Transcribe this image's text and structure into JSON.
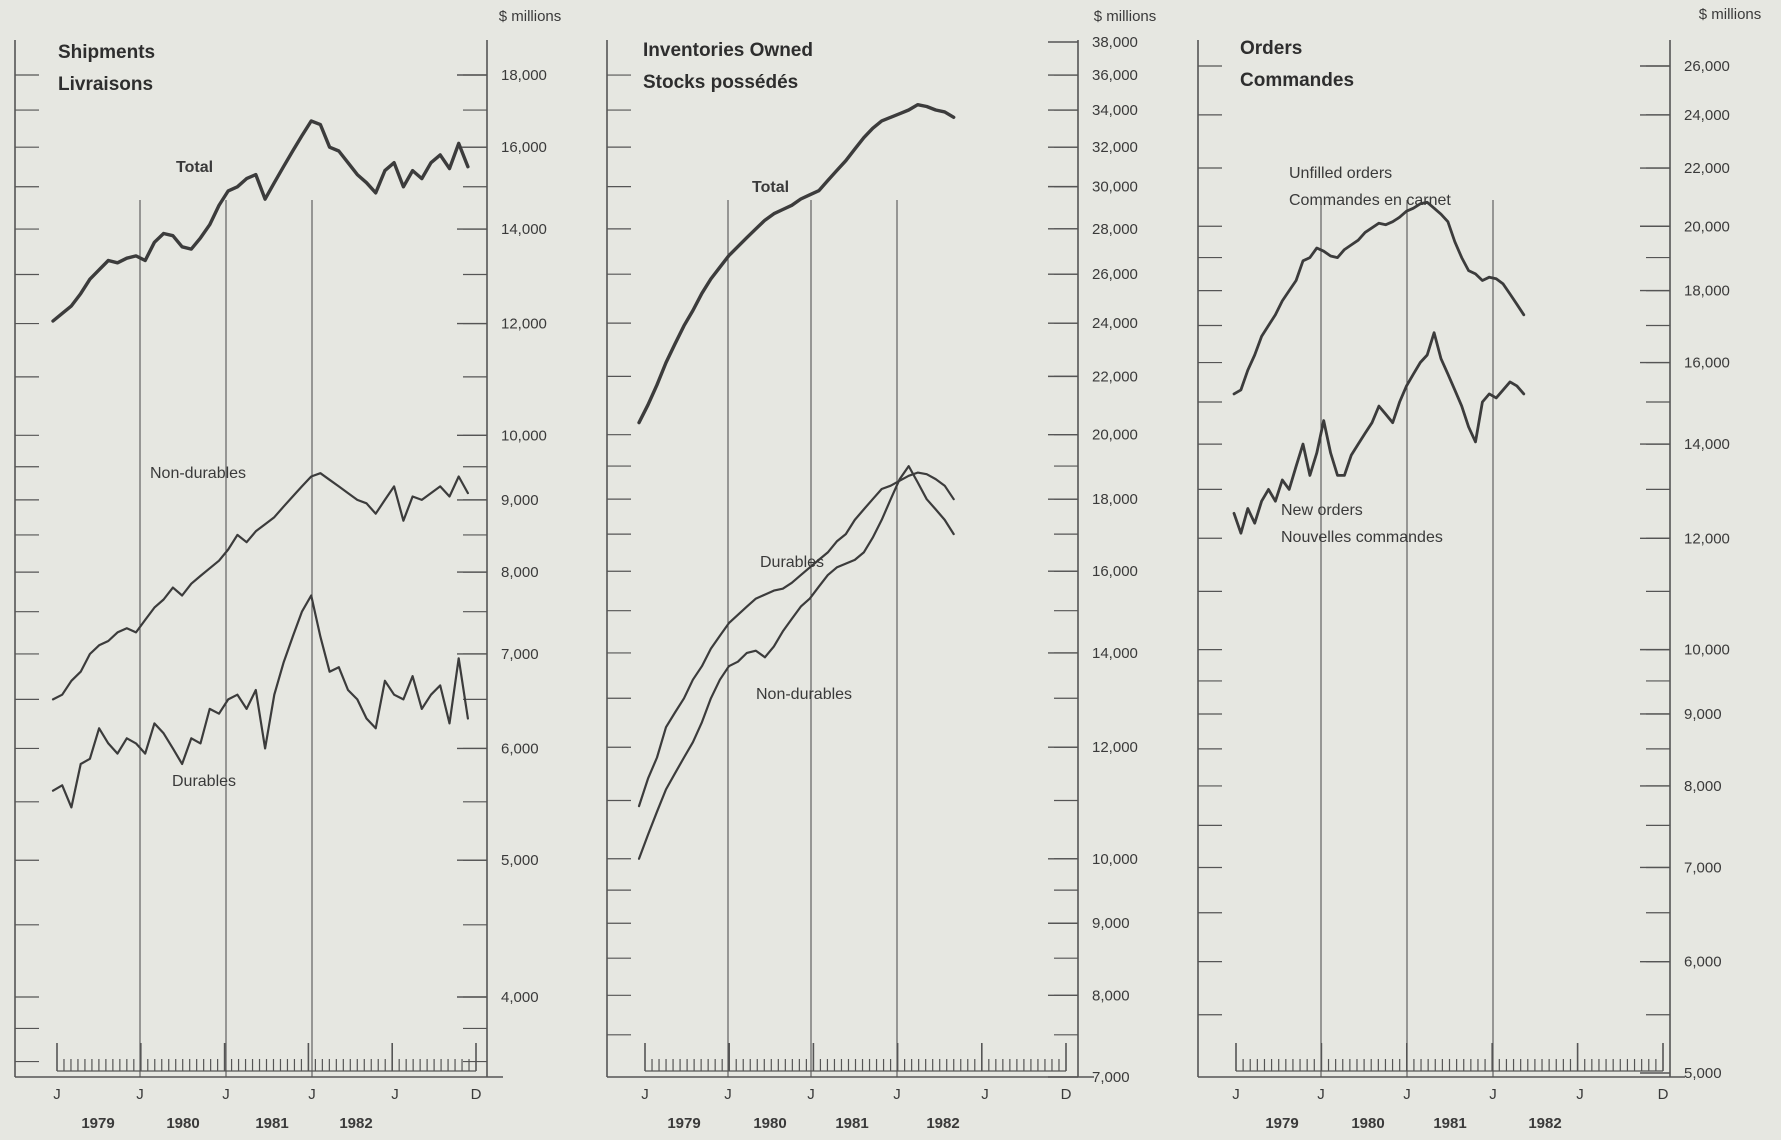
{
  "colors": {
    "background": "#e6e7e1",
    "ink": "#4a4a4a",
    "frame": "#555555",
    "accent": "#3c3c3c"
  },
  "chart_data": [
    {
      "type": "line",
      "scale": "log",
      "unit_label": "$ millions",
      "title": "Shipments",
      "subtitle": "Livraisons",
      "x": {
        "month_ticks": [
          "J",
          "J",
          "J",
          "J",
          "J",
          "D"
        ],
        "years": [
          "1979",
          "1980",
          "1981",
          "1982"
        ]
      },
      "yticks": [
        {
          "v": 18000,
          "t": "18,000"
        },
        {
          "v": 16000,
          "t": "16,000"
        },
        {
          "v": 14000,
          "t": "14,000"
        },
        {
          "v": 12000,
          "t": "12,000"
        },
        {
          "v": 10000,
          "t": "10,000"
        },
        {
          "v": 9000,
          "t": "9,000"
        },
        {
          "v": 8000,
          "t": "8,000"
        },
        {
          "v": 7000,
          "t": "7,000"
        },
        {
          "v": 6000,
          "t": "6,000"
        },
        {
          "v": 5000,
          "t": "5,000"
        },
        {
          "v": 4000,
          "t": "4,000"
        }
      ],
      "ylim": [
        3600,
        19500
      ],
      "series": [
        {
          "name": "Total",
          "bold": true,
          "values": [
            12050,
            12200,
            12350,
            12600,
            12900,
            13100,
            13300,
            13250,
            13350,
            13400,
            13300,
            13700,
            13900,
            13850,
            13600,
            13550,
            13800,
            14100,
            14550,
            14900,
            15000,
            15200,
            15300,
            14700,
            15100,
            15500,
            15900,
            16300,
            16700,
            16600,
            16000,
            15900,
            15600,
            15300,
            15100,
            14850,
            15400,
            15600,
            15000,
            15400,
            15200,
            15600,
            15800,
            15450,
            16100,
            15500
          ]
        },
        {
          "name": "Non-durables",
          "bold": false,
          "values": [
            6500,
            6550,
            6700,
            6800,
            7000,
            7100,
            7150,
            7250,
            7300,
            7250,
            7400,
            7550,
            7650,
            7800,
            7700,
            7850,
            7950,
            8050,
            8150,
            8300,
            8500,
            8400,
            8550,
            8650,
            8750,
            8900,
            9050,
            9200,
            9350,
            9400,
            9300,
            9200,
            9100,
            9000,
            8950,
            8800,
            9000,
            9200,
            8700,
            9050,
            9000,
            9100,
            9200,
            9050,
            9350,
            9100
          ]
        },
        {
          "name": "Durables",
          "bold": false,
          "values": [
            5600,
            5650,
            5450,
            5850,
            5900,
            6200,
            6050,
            5950,
            6100,
            6050,
            5950,
            6250,
            6150,
            6000,
            5850,
            6100,
            6050,
            6400,
            6350,
            6500,
            6550,
            6400,
            6600,
            6000,
            6550,
            6900,
            7200,
            7500,
            7700,
            7200,
            6800,
            6850,
            6600,
            6500,
            6300,
            6200,
            6700,
            6550,
            6500,
            6750,
            6400,
            6550,
            6650,
            6250,
            6950,
            6300
          ]
        }
      ]
    },
    {
      "type": "line",
      "scale": "log",
      "unit_label": "$ millions",
      "title": "Inventories Owned",
      "subtitle": "Stocks possédés",
      "x": {
        "month_ticks": [
          "J",
          "J",
          "J",
          "J",
          "J",
          "D"
        ],
        "years": [
          "1979",
          "1980",
          "1981",
          "1982"
        ]
      },
      "yticks": [
        {
          "v": 38000,
          "t": "38,000"
        },
        {
          "v": 36000,
          "t": "36,000"
        },
        {
          "v": 34000,
          "t": "34,000"
        },
        {
          "v": 32000,
          "t": "32,000"
        },
        {
          "v": 30000,
          "t": "30,000"
        },
        {
          "v": 28000,
          "t": "28,000"
        },
        {
          "v": 26000,
          "t": "26,000"
        },
        {
          "v": 24000,
          "t": "24,000"
        },
        {
          "v": 22000,
          "t": "22,000"
        },
        {
          "v": 20000,
          "t": "20,000"
        },
        {
          "v": 18000,
          "t": "18,000"
        },
        {
          "v": 16000,
          "t": "16,000"
        },
        {
          "v": 14000,
          "t": "14,000"
        },
        {
          "v": 12000,
          "t": "12,000"
        },
        {
          "v": 10000,
          "t": "10,000"
        },
        {
          "v": 9000,
          "t": "9,000"
        },
        {
          "v": 8000,
          "t": "8,000"
        },
        {
          "v": 7000,
          "t": "7,000"
        }
      ],
      "ylim": [
        7000,
        38000
      ],
      "series": [
        {
          "name": "Total",
          "bold": true,
          "values": [
            20400,
            21000,
            21700,
            22500,
            23200,
            23900,
            24500,
            25200,
            25800,
            26300,
            26800,
            27200,
            27600,
            28000,
            28400,
            28700,
            28900,
            29100,
            29400,
            29600,
            29800,
            30300,
            30800,
            31300,
            31900,
            32500,
            33000,
            33400,
            33600,
            33800,
            34000,
            34300,
            34200,
            34000,
            33900,
            33600
          ]
        },
        {
          "name": "Durables",
          "bold": false,
          "values": [
            10900,
            11400,
            11800,
            12400,
            12700,
            13000,
            13400,
            13700,
            14100,
            14400,
            14700,
            14900,
            15100,
            15300,
            15400,
            15500,
            15550,
            15700,
            15900,
            16100,
            16300,
            16500,
            16800,
            17000,
            17400,
            17700,
            18000,
            18300,
            18400,
            18550,
            18700,
            18800,
            18750,
            18600,
            18400,
            18000
          ]
        },
        {
          "name": "Non-durables",
          "bold": false,
          "values": [
            10000,
            10400,
            10800,
            11200,
            11500,
            11800,
            12100,
            12500,
            13000,
            13400,
            13700,
            13800,
            14000,
            14050,
            13900,
            14150,
            14500,
            14800,
            15100,
            15300,
            15600,
            15900,
            16100,
            16200,
            16300,
            16500,
            16900,
            17400,
            18000,
            18600,
            19000,
            18500,
            18000,
            17700,
            17400,
            17000
          ]
        }
      ]
    },
    {
      "type": "line",
      "scale": "log",
      "unit_label": "$ millions",
      "title": "Orders",
      "subtitle": "Commandes",
      "x": {
        "month_ticks": [
          "J",
          "J",
          "J",
          "J",
          "J",
          "D"
        ],
        "years": [
          "1979",
          "1980",
          "1981",
          "1982"
        ]
      },
      "yticks": [
        {
          "v": 26000,
          "t": "26,000"
        },
        {
          "v": 24000,
          "t": "24,000"
        },
        {
          "v": 22000,
          "t": "22,000"
        },
        {
          "v": 20000,
          "t": "20,000"
        },
        {
          "v": 18000,
          "t": "18,000"
        },
        {
          "v": 16000,
          "t": "16,000"
        },
        {
          "v": 14000,
          "t": "14,000"
        },
        {
          "v": 12000,
          "t": "12,000"
        },
        {
          "v": 10000,
          "t": "10,000"
        },
        {
          "v": 9000,
          "t": "9,000"
        },
        {
          "v": 8000,
          "t": "8,000"
        },
        {
          "v": 7000,
          "t": "7,000"
        },
        {
          "v": 6000,
          "t": "6,000"
        },
        {
          "v": 5000,
          "t": "5,000"
        }
      ],
      "ylim": [
        5000,
        27500
      ],
      "series": [
        {
          "name": "Unfilled orders / Commandes en carnet",
          "bold": false,
          "heavy": true,
          "values": [
            15200,
            15300,
            15800,
            16200,
            16700,
            17000,
            17300,
            17700,
            18000,
            18300,
            18900,
            19000,
            19300,
            19200,
            19050,
            19000,
            19250,
            19400,
            19550,
            19800,
            19950,
            20100,
            20050,
            20150,
            20300,
            20500,
            20600,
            20750,
            20800,
            20600,
            20400,
            20150,
            19500,
            19000,
            18600,
            18500,
            18300,
            18400,
            18350,
            18200,
            17900,
            17600,
            17300
          ]
        },
        {
          "name": "New orders / Nouvelles commandes",
          "bold": false,
          "heavy": true,
          "values": [
            12500,
            12100,
            12600,
            12300,
            12750,
            13000,
            12750,
            13200,
            13000,
            13500,
            14000,
            13300,
            13800,
            14550,
            13800,
            13300,
            13300,
            13750,
            14000,
            14250,
            14500,
            14900,
            14700,
            14500,
            15000,
            15400,
            15700,
            16000,
            16200,
            16800,
            16100,
            15700,
            15300,
            14900,
            14400,
            14050,
            15000,
            15200,
            15100,
            15300,
            15500,
            15400,
            15200
          ]
        }
      ]
    }
  ]
}
